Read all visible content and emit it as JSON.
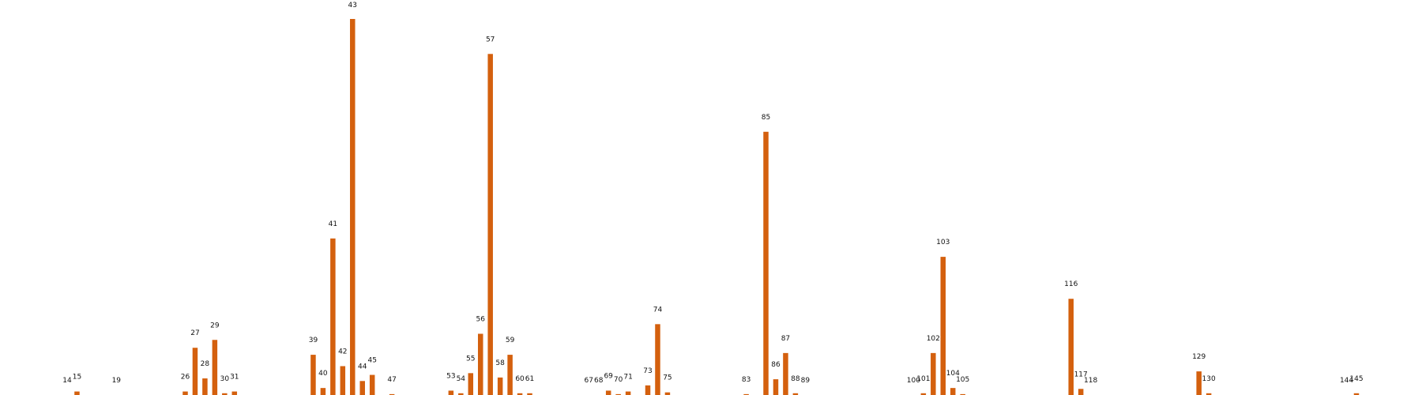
{
  "chart_data": {
    "type": "bar",
    "title": "",
    "xlabel": "",
    "ylabel": "",
    "grid": false,
    "legend": "none",
    "ylim": [
      0,
      43
    ],
    "bar_color": "#d4600e",
    "categories": [
      "14",
      "15",
      "19",
      "26",
      "27",
      "28",
      "29",
      "30",
      "31",
      "39",
      "40",
      "41",
      "42",
      "43",
      "44",
      "45",
      "47",
      "53",
      "54",
      "55",
      "56",
      "57",
      "58",
      "59",
      "60",
      "61",
      "67",
      "68",
      "69",
      "70",
      "71",
      "73",
      "74",
      "75",
      "83",
      "85",
      "86",
      "87",
      "88",
      "89",
      "100",
      "101",
      "102",
      "103",
      "104",
      "105",
      "116",
      "117",
      "118",
      "129",
      "130",
      "144",
      "145"
    ],
    "x": [
      14,
      15,
      19,
      26,
      27,
      28,
      29,
      30,
      31,
      39,
      40,
      41,
      42,
      43,
      44,
      45,
      47,
      53,
      54,
      55,
      56,
      57,
      58,
      59,
      60,
      61,
      67,
      68,
      69,
      70,
      71,
      73,
      74,
      75,
      83,
      85,
      86,
      87,
      88,
      89,
      100,
      101,
      102,
      103,
      104,
      105,
      116,
      117,
      118,
      129,
      130,
      144,
      145
    ],
    "values": [
      0,
      0.4,
      0,
      0.4,
      5.4,
      1.9,
      6.3,
      0.2,
      0.4,
      4.6,
      0.8,
      17.9,
      3.3,
      43,
      1.6,
      2.3,
      0.1,
      0.5,
      0.2,
      2.5,
      7.0,
      39,
      2.0,
      4.6,
      0.2,
      0.2,
      0,
      0,
      0.5,
      0.1,
      0.4,
      1.1,
      8.1,
      0.3,
      0.1,
      30.1,
      1.8,
      4.8,
      0.2,
      0,
      0,
      0.2,
      4.8,
      15.8,
      0.8,
      0.1,
      11.0,
      0.7,
      0,
      2.7,
      0.2,
      0,
      0.2
    ]
  }
}
